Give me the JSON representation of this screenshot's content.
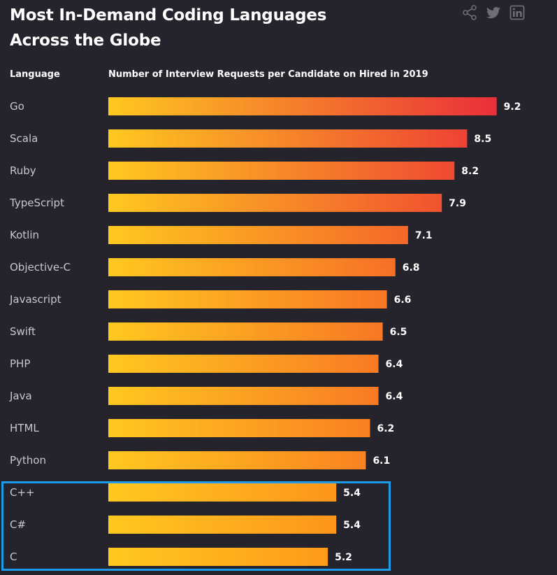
{
  "header": {
    "title_line1": "Most In-Demand Coding Languages",
    "title_line2": "Across the Globe",
    "column_language": "Language",
    "column_metric": "Number of Interview Requests per Candidate on Hired in 2019"
  },
  "share": {
    "icons": [
      "share-icon",
      "twitter-icon",
      "linkedin-icon"
    ],
    "icon_color": "#6e6c75"
  },
  "highlight": {
    "categories": [
      "C++",
      "C#",
      "C"
    ],
    "color": "#1e9be9"
  },
  "chart_data": {
    "type": "bar",
    "orientation": "horizontal",
    "categories": [
      "Go",
      "Scala",
      "Ruby",
      "TypeScript",
      "Kotlin",
      "Objective-C",
      "Javascript",
      "Swift",
      "PHP",
      "Java",
      "HTML",
      "Python",
      "C++",
      "C#",
      "C"
    ],
    "values": [
      9.2,
      8.5,
      8.2,
      7.9,
      7.1,
      6.8,
      6.6,
      6.5,
      6.4,
      6.4,
      6.2,
      6.1,
      5.4,
      5.4,
      5.2
    ],
    "ylabel": "Language",
    "xlabel": "Number of Interview Requests per Candidate on Hired in 2019",
    "grid": false,
    "legend": "none",
    "colors": {
      "gradient_start": "#ffc81f",
      "gradient_end_low": "#ff9a1a",
      "gradient_end_high": "#ea2f3a",
      "background": "#25232b",
      "label": "#c8c7cd",
      "value": "#ffffff"
    }
  }
}
